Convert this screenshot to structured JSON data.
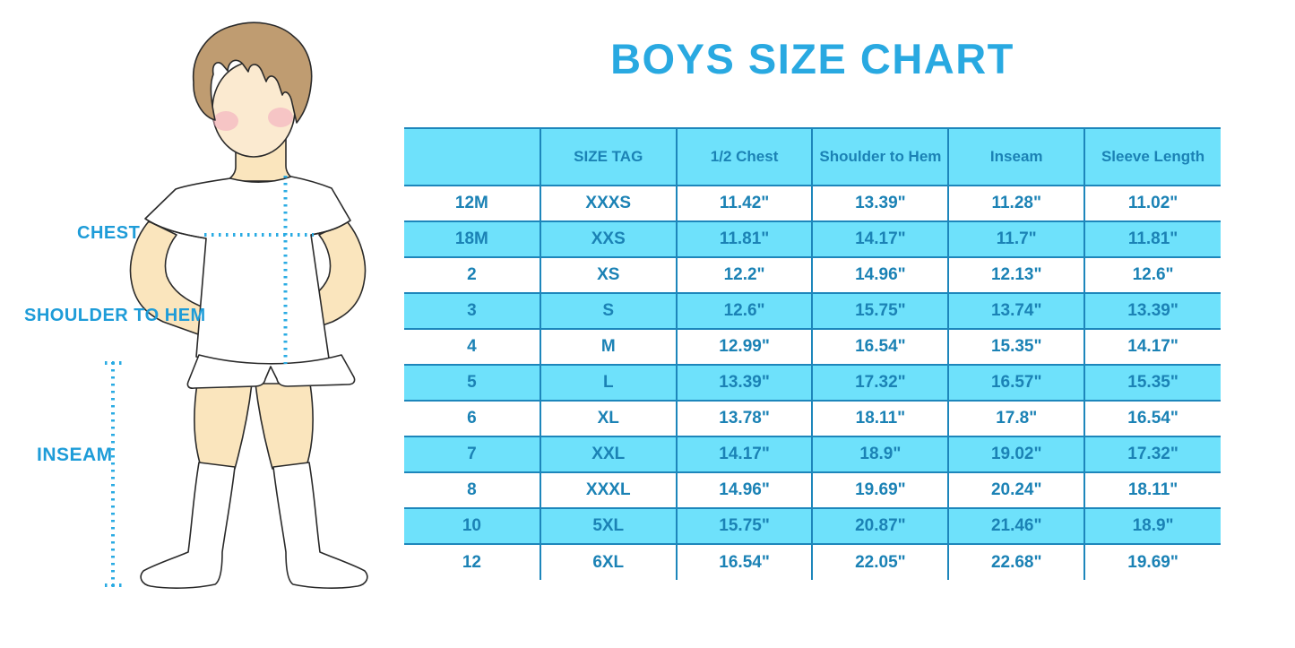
{
  "title": "BOYS SIZE CHART",
  "figure": {
    "description": "cartoon boy in white t-shirt, shorts and knee socks with measurement guides",
    "labels": {
      "chest": "CHEST",
      "shoulder_to_hem": "SHOULDER TO HEM",
      "inseam": "INSEAM"
    }
  },
  "colors": {
    "title_blue": "#29a9e1",
    "label_blue": "#1e9cd8",
    "table_text": "#1b82b5",
    "table_band": "#6ee1fb",
    "table_line": "#1d86bb",
    "dotted_guide": "#2aabe3",
    "skin": "#fae5bd",
    "hair": "#bf9c71",
    "blush": "#f3abbe"
  },
  "chart_data": {
    "type": "table",
    "title": "BOYS SIZE CHART",
    "columns": [
      "",
      "SIZE TAG",
      "1/2 Chest",
      "Shoulder to Hem",
      "Inseam",
      "Sleeve Length"
    ],
    "rows": [
      [
        "12M",
        "XXXS",
        "11.42\"",
        "13.39\"",
        "11.28\"",
        "11.02\""
      ],
      [
        "18M",
        "XXS",
        "11.81\"",
        "14.17\"",
        "11.7\"",
        "11.81\""
      ],
      [
        "2",
        "XS",
        "12.2\"",
        "14.96\"",
        "12.13\"",
        "12.6\""
      ],
      [
        "3",
        "S",
        "12.6\"",
        "15.75\"",
        "13.74\"",
        "13.39\""
      ],
      [
        "4",
        "M",
        "12.99\"",
        "16.54\"",
        "15.35\"",
        "14.17\""
      ],
      [
        "5",
        "L",
        "13.39\"",
        "17.32\"",
        "16.57\"",
        "15.35\""
      ],
      [
        "6",
        "XL",
        "13.78\"",
        "18.11\"",
        "17.8\"",
        "16.54\""
      ],
      [
        "7",
        "XXL",
        "14.17\"",
        "18.9\"",
        "19.02\"",
        "17.32\""
      ],
      [
        "8",
        "XXXL",
        "14.96\"",
        "19.69\"",
        "20.24\"",
        "18.11\""
      ],
      [
        "10",
        "5XL",
        "15.75\"",
        "20.87\"",
        "21.46\"",
        "18.9\""
      ],
      [
        "12",
        "6XL",
        "16.54\"",
        "22.05\"",
        "22.68\"",
        "19.69\""
      ]
    ],
    "layout": {
      "header_fill": "#6ee1fb",
      "alternating_row_fill": [
        "#ffffff",
        "#6ee1fb"
      ],
      "gridlines": "vertical only, plus banded row edges"
    }
  }
}
